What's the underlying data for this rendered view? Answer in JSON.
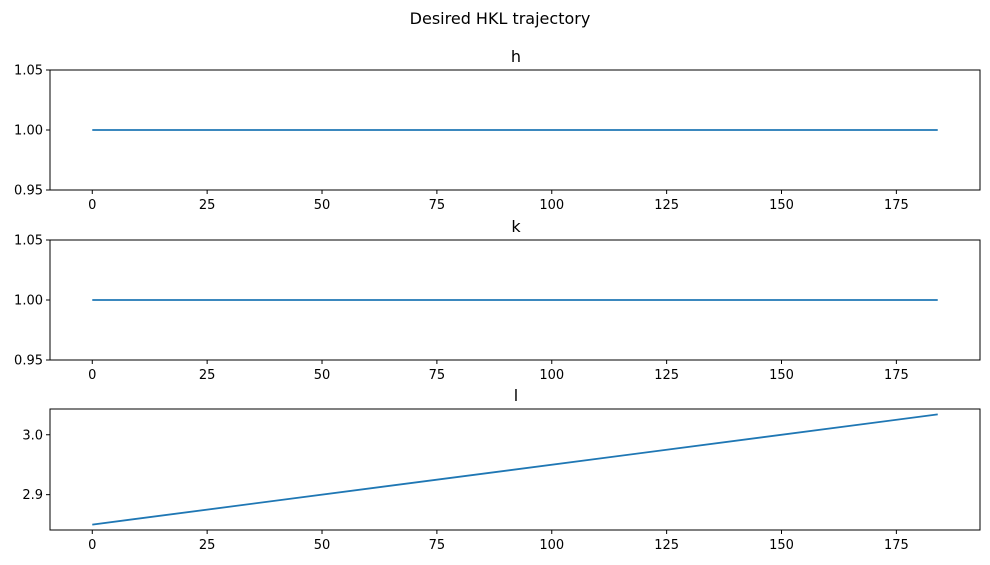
{
  "figure_title": "Desired HKL trajectory",
  "colors": {
    "series": "#1f77b4",
    "axis": "#000000"
  },
  "chart_data": [
    {
      "type": "line",
      "title": "h",
      "xlabel": "",
      "ylabel": "",
      "xlim": [
        -9.2,
        193.2
      ],
      "ylim": [
        0.95,
        1.05
      ],
      "xticks": [
        0,
        25,
        50,
        75,
        100,
        125,
        150,
        175
      ],
      "yticks": [
        0.95,
        1.0,
        1.05
      ],
      "ytick_labels": [
        "0.95",
        "1.00",
        "1.05"
      ],
      "series": [
        {
          "x": [
            0,
            184
          ],
          "y": [
            1.0,
            1.0
          ]
        }
      ]
    },
    {
      "type": "line",
      "title": "k",
      "xlabel": "",
      "ylabel": "",
      "xlim": [
        -9.2,
        193.2
      ],
      "ylim": [
        0.95,
        1.05
      ],
      "xticks": [
        0,
        25,
        50,
        75,
        100,
        125,
        150,
        175
      ],
      "yticks": [
        0.95,
        1.0,
        1.05
      ],
      "ytick_labels": [
        "0.95",
        "1.00",
        "1.05"
      ],
      "series": [
        {
          "x": [
            0,
            184
          ],
          "y": [
            1.0,
            1.0
          ]
        }
      ]
    },
    {
      "type": "line",
      "title": "l",
      "xlabel": "",
      "ylabel": "",
      "xlim": [
        -9.2,
        193.2
      ],
      "ylim": [
        2.841,
        3.043
      ],
      "xticks": [
        0,
        25,
        50,
        75,
        100,
        125,
        150,
        175
      ],
      "yticks": [
        2.9,
        3.0
      ],
      "ytick_labels": [
        "2.9",
        "3.0"
      ],
      "series": [
        {
          "x": [
            0,
            184
          ],
          "y": [
            2.85,
            3.034
          ]
        }
      ]
    }
  ]
}
